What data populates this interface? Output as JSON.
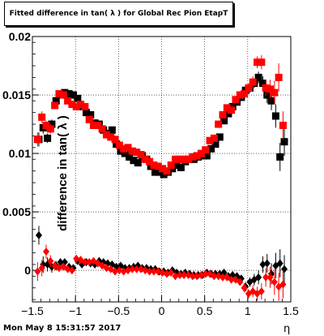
{
  "title": "Fitted difference in tan( λ ) for Global Rec Pion EtapT",
  "ylabel": "difference in tan( λ )",
  "xlabel": "η",
  "timestamp": "Mon May  8 15:31:57 2017",
  "colors": {
    "series1": "#000000",
    "series2": "#ff0000",
    "grid": "#000000",
    "frame": "#000000"
  },
  "chart_data": {
    "type": "scatter",
    "xlim": [
      -1.5,
      1.5
    ],
    "ylim": [
      -0.0027,
      0.02
    ],
    "grid": true,
    "xticks": [
      -1.5,
      -1.0,
      -0.5,
      0,
      0.5,
      1.0,
      1.5
    ],
    "xtick_labels": [
      "−1.5",
      "−1",
      "−0.5",
      "0",
      "0.5",
      "1",
      "1.5"
    ],
    "yticks": [
      0,
      0.005,
      0.01,
      0.015,
      0.02
    ],
    "ytick_labels": [
      "0",
      "0.005",
      "0.01",
      "0.015",
      "0.02"
    ],
    "series": [
      {
        "marker": "square",
        "color": "#000000",
        "x": [
          -1.425,
          -1.375,
          -1.325,
          -1.275,
          -1.225,
          -1.175,
          -1.125,
          -1.075,
          -1.025,
          -0.975,
          -0.925,
          -0.875,
          -0.825,
          -0.775,
          -0.725,
          -0.675,
          -0.625,
          -0.575,
          -0.525,
          -0.475,
          -0.425,
          -0.375,
          -0.325,
          -0.275,
          -0.225,
          -0.175,
          -0.125,
          -0.075,
          -0.025,
          0.025,
          0.075,
          0.125,
          0.175,
          0.225,
          0.275,
          0.325,
          0.375,
          0.425,
          0.475,
          0.525,
          0.575,
          0.625,
          0.675,
          0.725,
          0.775,
          0.825,
          0.875,
          0.925,
          0.975,
          1.025,
          1.075,
          1.125,
          1.175,
          1.225,
          1.275,
          1.325,
          1.375,
          1.425
        ],
        "y": [
          0.0112,
          0.0122,
          0.0113,
          0.0125,
          0.0145,
          0.015,
          0.0152,
          0.0151,
          0.015,
          0.0147,
          0.014,
          0.0135,
          0.0133,
          0.0126,
          0.0125,
          0.012,
          0.0117,
          0.012,
          0.0108,
          0.0102,
          0.01,
          0.0097,
          0.0094,
          0.0092,
          0.0098,
          0.0095,
          0.0089,
          0.0084,
          0.0084,
          0.0082,
          0.0084,
          0.0087,
          0.009,
          0.0088,
          0.0093,
          0.0095,
          0.0095,
          0.0097,
          0.0098,
          0.0098,
          0.0104,
          0.0108,
          0.0114,
          0.0128,
          0.0134,
          0.014,
          0.0144,
          0.0148,
          0.0154,
          0.0156,
          0.016,
          0.0165,
          0.016,
          0.015,
          0.0145,
          0.0132,
          0.0097,
          0.011
        ],
        "yerr": [
          0.0006,
          0.0005,
          0.0004,
          0.0004,
          0.0003,
          0.0003,
          0.0003,
          0.0003,
          0.0003,
          0.0003,
          0.0003,
          0.0003,
          0.0003,
          0.0003,
          0.0003,
          0.0003,
          0.0003,
          0.0003,
          0.0003,
          0.0003,
          0.0003,
          0.0003,
          0.0003,
          0.0003,
          0.0003,
          0.0003,
          0.0003,
          0.0003,
          0.0003,
          0.0003,
          0.0003,
          0.0003,
          0.0003,
          0.0003,
          0.0003,
          0.0003,
          0.0003,
          0.0003,
          0.0003,
          0.0003,
          0.0003,
          0.0003,
          0.0003,
          0.0003,
          0.0003,
          0.0003,
          0.0003,
          0.0003,
          0.0003,
          0.0004,
          0.0004,
          0.0005,
          0.0006,
          0.0007,
          0.0008,
          0.001,
          0.0012,
          0.0012
        ]
      },
      {
        "marker": "square",
        "color": "#ff0000",
        "x": [
          -1.44,
          -1.39,
          -1.34,
          -1.29,
          -1.24,
          -1.19,
          -1.14,
          -1.09,
          -1.04,
          -0.99,
          -0.94,
          -0.89,
          -0.84,
          -0.79,
          -0.74,
          -0.69,
          -0.64,
          -0.59,
          -0.54,
          -0.49,
          -0.44,
          -0.39,
          -0.34,
          -0.29,
          -0.24,
          -0.19,
          -0.14,
          -0.09,
          -0.04,
          0.01,
          0.06,
          0.11,
          0.16,
          0.21,
          0.26,
          0.31,
          0.36,
          0.41,
          0.46,
          0.51,
          0.56,
          0.61,
          0.66,
          0.71,
          0.76,
          0.81,
          0.86,
          0.91,
          0.96,
          1.01,
          1.06,
          1.11,
          1.16,
          1.21,
          1.26,
          1.31,
          1.36,
          1.41
        ],
        "y": [
          0.0112,
          0.0131,
          0.0124,
          0.0121,
          0.0141,
          0.0151,
          0.015,
          0.0145,
          0.0142,
          0.014,
          0.0142,
          0.014,
          0.0129,
          0.0124,
          0.0124,
          0.0121,
          0.0116,
          0.0114,
          0.0112,
          0.0107,
          0.0104,
          0.0105,
          0.0102,
          0.0101,
          0.0099,
          0.0095,
          0.0093,
          0.009,
          0.0089,
          0.0087,
          0.0085,
          0.009,
          0.0095,
          0.0095,
          0.0095,
          0.0095,
          0.0097,
          0.0098,
          0.01,
          0.0103,
          0.0111,
          0.0113,
          0.0125,
          0.0133,
          0.0139,
          0.0137,
          0.0146,
          0.015,
          0.0151,
          0.0156,
          0.0161,
          0.0178,
          0.0178,
          0.0156,
          0.0155,
          0.0152,
          0.0165,
          0.0124
        ],
        "yerr": [
          0.0006,
          0.0005,
          0.0004,
          0.0004,
          0.0003,
          0.0003,
          0.0003,
          0.0003,
          0.0003,
          0.0003,
          0.0003,
          0.0003,
          0.0003,
          0.0003,
          0.0003,
          0.0003,
          0.0003,
          0.0003,
          0.0003,
          0.0003,
          0.0003,
          0.0003,
          0.0003,
          0.0003,
          0.0003,
          0.0003,
          0.0003,
          0.0003,
          0.0003,
          0.0003,
          0.0003,
          0.0003,
          0.0003,
          0.0003,
          0.0003,
          0.0003,
          0.0003,
          0.0003,
          0.0003,
          0.0003,
          0.0003,
          0.0003,
          0.0003,
          0.0003,
          0.0003,
          0.0003,
          0.0003,
          0.0003,
          0.0003,
          0.0004,
          0.0005,
          0.0005,
          0.0006,
          0.0007,
          0.0008,
          0.001,
          0.0012,
          0.0012
        ]
      },
      {
        "marker": "diamond",
        "color": "#000000",
        "x": [
          -1.425,
          -1.375,
          -1.325,
          -1.275,
          -1.225,
          -1.175,
          -1.125,
          -1.075,
          -1.025,
          -0.975,
          -0.925,
          -0.875,
          -0.825,
          -0.775,
          -0.725,
          -0.675,
          -0.625,
          -0.575,
          -0.525,
          -0.475,
          -0.425,
          -0.375,
          -0.325,
          -0.275,
          -0.225,
          -0.175,
          -0.125,
          -0.075,
          -0.025,
          0.025,
          0.075,
          0.125,
          0.175,
          0.225,
          0.275,
          0.325,
          0.375,
          0.425,
          0.475,
          0.525,
          0.575,
          0.625,
          0.675,
          0.725,
          0.775,
          0.825,
          0.875,
          0.925,
          0.975,
          1.025,
          1.075,
          1.125,
          1.175,
          1.225,
          1.275,
          1.325,
          1.375,
          1.425
        ],
        "y": [
          0.003,
          0.0005,
          0.0005,
          0.0003,
          0.0004,
          0.0007,
          0.0007,
          0.0003,
          0.0002,
          0.0008,
          0.0005,
          0.0007,
          0.0006,
          0.0005,
          0.0008,
          0.0007,
          0.0006,
          0.0005,
          0.0003,
          0.0004,
          0.0002,
          0.0002,
          0.0003,
          0.0004,
          0.0002,
          0.0002,
          0.0001,
          0.0001,
          -0.0001,
          -0.0001,
          -0.0002,
          0.0,
          -0.0002,
          -0.0003,
          -0.0002,
          -0.0003,
          -0.0004,
          -0.0004,
          -0.0004,
          -0.0002,
          -0.0003,
          -0.0003,
          -0.0003,
          -0.0002,
          -0.0005,
          -0.0004,
          -0.0005,
          -0.0007,
          -0.0014,
          -0.001,
          -0.0008,
          -0.0006,
          0.0005,
          0.0006,
          -0.0003,
          0.0004,
          0.0006,
          0.0001
        ],
        "yerr": [
          0.0008,
          0.0007,
          0.0006,
          0.0005,
          0.0004,
          0.0003,
          0.0003,
          0.0003,
          0.0003,
          0.0003,
          0.0003,
          0.0003,
          0.0003,
          0.0003,
          0.0003,
          0.0003,
          0.0003,
          0.0003,
          0.0003,
          0.0003,
          0.0003,
          0.0003,
          0.0003,
          0.0003,
          0.0003,
          0.0003,
          0.0003,
          0.0003,
          0.0003,
          0.0003,
          0.0003,
          0.0003,
          0.0003,
          0.0003,
          0.0003,
          0.0003,
          0.0003,
          0.0003,
          0.0003,
          0.0003,
          0.0003,
          0.0003,
          0.0003,
          0.0003,
          0.0003,
          0.0003,
          0.0003,
          0.0003,
          0.0004,
          0.0004,
          0.0005,
          0.0006,
          0.0007,
          0.0008,
          0.0009,
          0.0011,
          0.0012,
          0.0012
        ]
      },
      {
        "marker": "diamond",
        "color": "#ff0000",
        "x": [
          -1.44,
          -1.39,
          -1.34,
          -1.29,
          -1.24,
          -1.19,
          -1.14,
          -1.09,
          -1.04,
          -0.99,
          -0.94,
          -0.89,
          -0.84,
          -0.79,
          -0.74,
          -0.69,
          -0.64,
          -0.59,
          -0.54,
          -0.49,
          -0.44,
          -0.39,
          -0.34,
          -0.29,
          -0.24,
          -0.19,
          -0.14,
          -0.09,
          -0.04,
          0.01,
          0.06,
          0.11,
          0.16,
          0.21,
          0.26,
          0.31,
          0.36,
          0.41,
          0.46,
          0.51,
          0.56,
          0.61,
          0.66,
          0.71,
          0.76,
          0.81,
          0.86,
          0.91,
          0.96,
          1.01,
          1.06,
          1.11,
          1.16,
          1.21,
          1.26,
          1.31,
          1.36,
          1.41
        ],
        "y": [
          -0.0001,
          0.0002,
          0.0016,
          0.0008,
          0.0004,
          0.0002,
          0.0003,
          0.0001,
          0.0,
          0.001,
          0.0009,
          0.0007,
          0.0007,
          0.0008,
          0.0006,
          0.0004,
          0.0002,
          0.0001,
          -0.0001,
          0.0,
          -0.0001,
          0.0,
          0.0001,
          0.0001,
          0.0001,
          0.0,
          -0.0001,
          -0.0001,
          -0.0001,
          -0.0002,
          -0.0003,
          -0.0002,
          -0.0005,
          -0.0004,
          -0.0004,
          -0.0004,
          -0.0005,
          -0.0005,
          -0.0004,
          -0.0003,
          -0.0003,
          -0.0005,
          -0.0005,
          -0.0006,
          -0.0006,
          -0.0008,
          -0.0008,
          -0.001,
          -0.0015,
          -0.002,
          -0.0018,
          -0.002,
          -0.0018,
          -0.0006,
          -0.0006,
          -0.001,
          -0.0014,
          -0.0012
        ],
        "yerr": [
          0.0008,
          0.0007,
          0.0006,
          0.0005,
          0.0004,
          0.0003,
          0.0003,
          0.0003,
          0.0003,
          0.0003,
          0.0003,
          0.0003,
          0.0003,
          0.0003,
          0.0003,
          0.0003,
          0.0003,
          0.0003,
          0.0003,
          0.0003,
          0.0003,
          0.0003,
          0.0003,
          0.0003,
          0.0003,
          0.0003,
          0.0003,
          0.0003,
          0.0003,
          0.0003,
          0.0003,
          0.0003,
          0.0003,
          0.0003,
          0.0003,
          0.0003,
          0.0003,
          0.0003,
          0.0003,
          0.0003,
          0.0003,
          0.0003,
          0.0003,
          0.0003,
          0.0003,
          0.0003,
          0.0003,
          0.0003,
          0.0004,
          0.0004,
          0.0005,
          0.0006,
          0.0007,
          0.0008,
          0.0009,
          0.0011,
          0.0012,
          0.0012
        ]
      }
    ]
  }
}
